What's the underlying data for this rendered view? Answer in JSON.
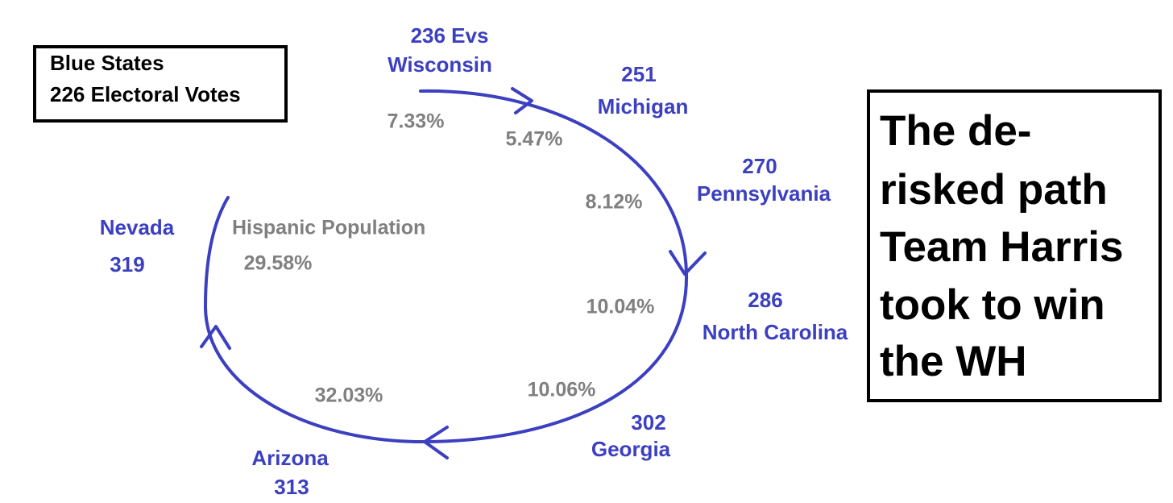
{
  "legend_box": {
    "lines": [
      "Blue States",
      "226 Electoral Votes"
    ]
  },
  "headline_box": {
    "lines": [
      "The de-",
      "risked path",
      "Team Harris",
      "took to win",
      "the WH"
    ]
  },
  "center": {
    "label": "Hispanic Population",
    "share": "29.58%"
  },
  "states": [
    {
      "votes": "236 Evs",
      "name": "Wisconsin",
      "share": "7.33%"
    },
    {
      "votes": "251",
      "name": "Michigan",
      "share": "5.47%"
    },
    {
      "votes": "270",
      "name": "Pennsylvania",
      "share": "8.12%"
    },
    {
      "votes": "286",
      "name": "North Carolina",
      "share": "10.04%"
    },
    {
      "votes": "302",
      "name": "Georgia",
      "share": "10.06%"
    },
    {
      "votes": "313",
      "name": "Arizona",
      "share": "32.03%"
    },
    {
      "votes": "319",
      "name": "Nevada"
    }
  ]
}
